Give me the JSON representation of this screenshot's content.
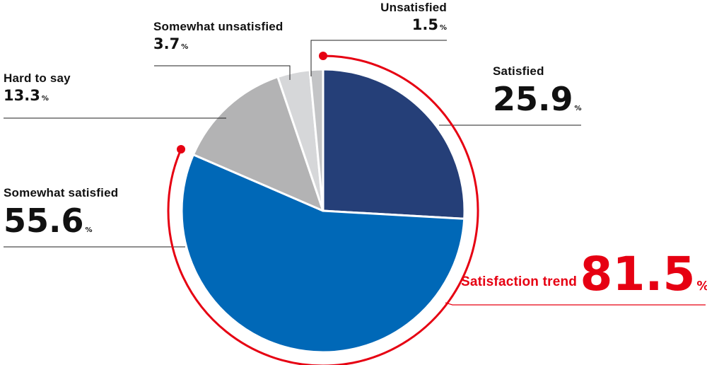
{
  "chart_data": {
    "type": "pie",
    "start_angle_deg": 0,
    "direction": "clockwise",
    "slices": [
      {
        "label": "Satisfied",
        "value": 25.9,
        "color": "#253f78"
      },
      {
        "label": "Somewhat satisfied",
        "value": 55.6,
        "color": "#0068b7"
      },
      {
        "label": "Hard to say",
        "value": 13.3,
        "color": "#b3b3b4"
      },
      {
        "label": "Somewhat unsatisfied",
        "value": 3.7,
        "color": "#d6d7d9"
      },
      {
        "label": "Unsatisfied",
        "value": 1.5,
        "color": "#c3c4c6"
      }
    ],
    "unit": "%",
    "highlight": {
      "label": "Satisfaction trend",
      "value": 81.5,
      "unit": "%",
      "color": "#e60012",
      "covers": [
        "Satisfied",
        "Somewhat satisfied"
      ]
    }
  }
}
